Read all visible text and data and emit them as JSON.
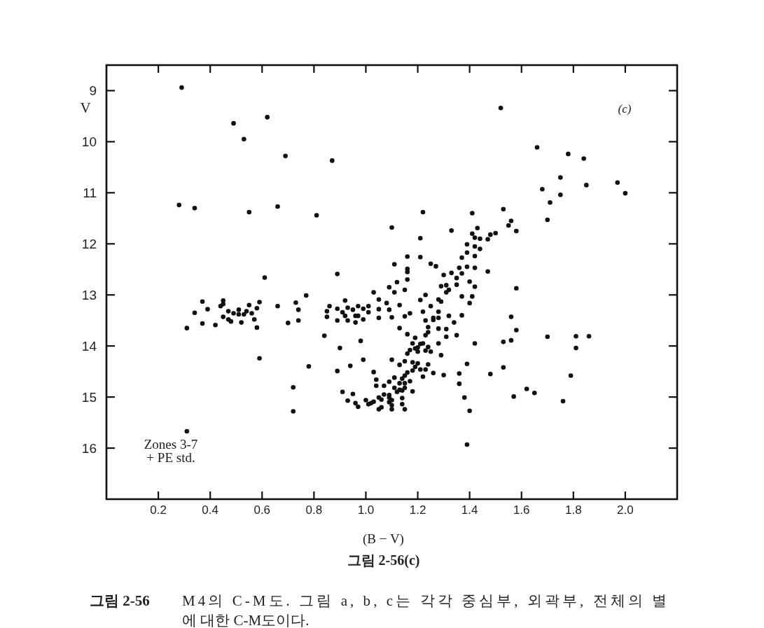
{
  "chart_data": {
    "type": "scatter",
    "xlabel": "(B − V)",
    "ylabel": "V",
    "annotations": [
      "(c)",
      "Zones 3-7\n+ PE std.",
      "그림 2-56(c)",
      "그림 2-56",
      "M4의 C-M도. 그림 a, b, c는 각각 중심부, 외곽부, 전체의 별\n에 대한 C-M도이다."
    ],
    "xlim": [
      0,
      2.2
    ],
    "ylim": [
      17,
      8.5
    ],
    "xticks": [
      0.2,
      0.4,
      0.6,
      0.8,
      {
        "value": 1,
        "label": "1.0"
      },
      1.2,
      1.4,
      1.6,
      1.8,
      {
        "value": 2,
        "label": "2.0"
      }
    ],
    "yticks": [
      9,
      10,
      11,
      12,
      13,
      14,
      15,
      16
    ],
    "marker": "circle",
    "color": "#111111",
    "x": [
      0.29,
      0.49,
      0.62,
      0.53,
      0.87,
      0.69,
      0.81,
      0.55,
      0.66,
      0.28,
      0.34,
      1.52,
      1.66,
      1.78,
      1.84,
      1.75,
      1.68,
      1.85,
      1.97,
      2.0,
      1.75,
      1.71,
      1.7,
      1.53,
      1.56,
      1.55,
      1.58,
      1.22,
      1.41,
      1.1,
      1.33,
      1.43,
      1.5,
      1.21,
      1.41,
      1.42,
      1.44,
      1.47,
      1.48,
      0.61,
      0.89,
      1.39,
      1.42,
      1.44,
      1.39,
      1.42,
      1.21,
      1.16,
      1.11,
      1.25,
      1.27,
      1.37,
      1.39,
      1.36,
      1.42,
      1.16,
      1.16,
      1.47,
      1.3,
      1.33,
      1.35,
      1.37,
      1.12,
      1.16,
      1.4,
      1.09,
      1.15,
      1.32,
      1.31,
      1.35,
      1.31,
      1.29,
      1.42,
      1.58,
      1.03,
      1.11,
      1.05,
      1.08,
      1.05,
      1.09,
      1.13,
      1.05,
      1.1,
      1.15,
      1.17,
      1.22,
      1.25,
      1.23,
      1.21,
      1.28,
      1.29,
      1.41,
      1.37,
      1.4,
      1.28,
      1.26,
      1.28,
      1.23,
      1.28,
      1.24,
      1.23,
      1.32,
      1.34,
      1.31,
      1.31,
      1.35,
      1.37,
      1.42,
      1.16,
      1.13,
      0.98,
      0.9,
      1.19,
      1.18,
      1.21,
      1.22,
      1.28,
      1.56,
      1.58,
      1.53,
      1.56,
      1.7,
      1.81,
      1.86,
      1.81,
      0.77,
      0.73,
      0.74,
      0.74,
      0.84,
      0.31,
      0.37,
      0.42,
      0.37,
      0.34,
      0.39,
      0.45,
      0.44,
      0.45,
      0.45,
      0.47,
      0.48,
      0.47,
      0.49,
      0.51,
      0.51,
      0.52,
      0.53,
      0.54,
      0.55,
      0.56,
      0.57,
      0.58,
      0.59,
      0.58,
      0.7,
      0.66,
      0.85,
      0.86,
      0.85,
      0.89,
      0.89,
      0.91,
      0.92,
      0.93,
      0.92,
      0.93,
      0.95,
      0.96,
      0.96,
      0.97,
      0.97,
      0.99,
      0.99,
      1.01,
      1.01,
      0.59,
      0.78,
      0.72,
      0.72,
      1.2,
      1.19,
      1.17,
      1.23,
      1.25,
      1.24,
      1.29,
      1.16,
      1.1,
      0.99,
      0.94,
      0.89,
      1.03,
      1.13,
      1.15,
      1.19,
      1.2,
      1.21,
      1.18,
      1.24,
      1.23,
      1.22,
      1.26,
      1.3,
      1.36,
      1.36,
      1.39,
      1.38,
      1.4,
      1.48,
      1.53,
      1.62,
      1.65,
      1.57,
      1.79,
      1.76,
      1.15,
      1.14,
      1.17,
      1.15,
      1.13,
      1.11,
      1.09,
      1.07,
      1.11,
      1.14,
      1.12,
      1.18,
      1.09,
      1.07,
      1.06,
      1.05,
      1.09,
      1.1,
      1.14,
      1.14,
      1.03,
      1.02,
      1.0,
      0.96,
      0.97,
      1.05,
      1.1,
      1.15,
      1.06,
      0.93,
      0.91,
      0.95,
      1.04,
      1.04,
      1.01,
      0.31,
      1.39,
      1.26,
      1.24,
      1.2,
      1.18,
      1.16,
      1.13,
      1.09,
      1.1,
      1.15
    ],
    "values": [
      8.94,
      9.64,
      9.52,
      9.95,
      10.37,
      10.28,
      11.44,
      11.38,
      11.27,
      11.24,
      11.3,
      9.34,
      10.11,
      10.24,
      10.33,
      10.7,
      10.93,
      10.85,
      10.8,
      11.01,
      11.04,
      11.19,
      11.53,
      11.32,
      11.55,
      11.64,
      11.75,
      11.38,
      11.4,
      11.68,
      11.74,
      11.69,
      11.79,
      11.89,
      11.8,
      11.88,
      11.9,
      11.91,
      11.82,
      12.66,
      12.59,
      12.01,
      12.05,
      12.1,
      12.17,
      12.24,
      12.26,
      12.25,
      12.4,
      12.39,
      12.44,
      12.27,
      12.45,
      12.47,
      12.47,
      12.49,
      12.55,
      12.54,
      12.61,
      12.57,
      12.67,
      12.58,
      12.75,
      12.7,
      12.74,
      12.85,
      12.9,
      12.9,
      12.95,
      12.8,
      12.81,
      12.83,
      12.84,
      12.87,
      12.95,
      12.95,
      13.09,
      13.16,
      13.28,
      13.29,
      13.2,
      13.45,
      13.44,
      13.42,
      13.36,
      13.33,
      13.22,
      13.0,
      13.1,
      13.09,
      13.13,
      13.03,
      13.03,
      13.16,
      13.33,
      13.45,
      13.45,
      13.5,
      13.66,
      13.73,
      13.79,
      13.41,
      13.54,
      13.67,
      13.82,
      13.79,
      13.4,
      13.95,
      13.77,
      13.65,
      13.9,
      14.04,
      13.84,
      13.95,
      13.96,
      13.95,
      13.95,
      13.43,
      13.69,
      13.92,
      13.89,
      13.82,
      13.81,
      13.81,
      14.04,
      13.01,
      13.15,
      13.29,
      13.5,
      13.8,
      13.65,
      13.56,
      13.59,
      13.13,
      13.35,
      13.28,
      13.11,
      13.22,
      13.18,
      13.43,
      13.48,
      13.52,
      13.32,
      13.36,
      13.29,
      13.38,
      13.54,
      13.38,
      13.32,
      13.2,
      13.36,
      13.48,
      13.26,
      13.14,
      13.64,
      13.55,
      13.22,
      13.32,
      13.22,
      13.43,
      13.5,
      13.27,
      13.34,
      13.41,
      13.5,
      13.11,
      13.25,
      13.29,
      13.41,
      13.54,
      13.22,
      13.41,
      13.48,
      13.27,
      13.22,
      13.34,
      14.24,
      14.4,
      14.81,
      15.28,
      14.11,
      14.05,
      14.08,
      14.09,
      14.11,
      14.02,
      14.18,
      14.15,
      14.27,
      14.27,
      14.39,
      14.49,
      14.51,
      14.37,
      14.3,
      14.41,
      14.34,
      14.46,
      14.48,
      14.36,
      14.46,
      14.6,
      14.53,
      14.57,
      14.54,
      14.74,
      14.35,
      15.01,
      15.27,
      14.55,
      14.42,
      14.84,
      14.92,
      14.99,
      14.58,
      15.08,
      14.58,
      14.64,
      14.69,
      14.73,
      14.73,
      14.62,
      14.7,
      14.78,
      14.82,
      14.87,
      14.9,
      14.89,
      14.96,
      14.95,
      15.05,
      15.01,
      15.1,
      15.06,
      15.02,
      15.14,
      15.09,
      15.12,
      15.06,
      15.12,
      15.19,
      15.24,
      15.24,
      15.24,
      15.2,
      15.07,
      14.9,
      14.94,
      14.66,
      14.78,
      15.14,
      15.67,
      15.93,
      13.49,
      13.63,
      14.03,
      14.32,
      14.52,
      14.86,
      15.01,
      15.16,
      14.82
    ]
  }
}
